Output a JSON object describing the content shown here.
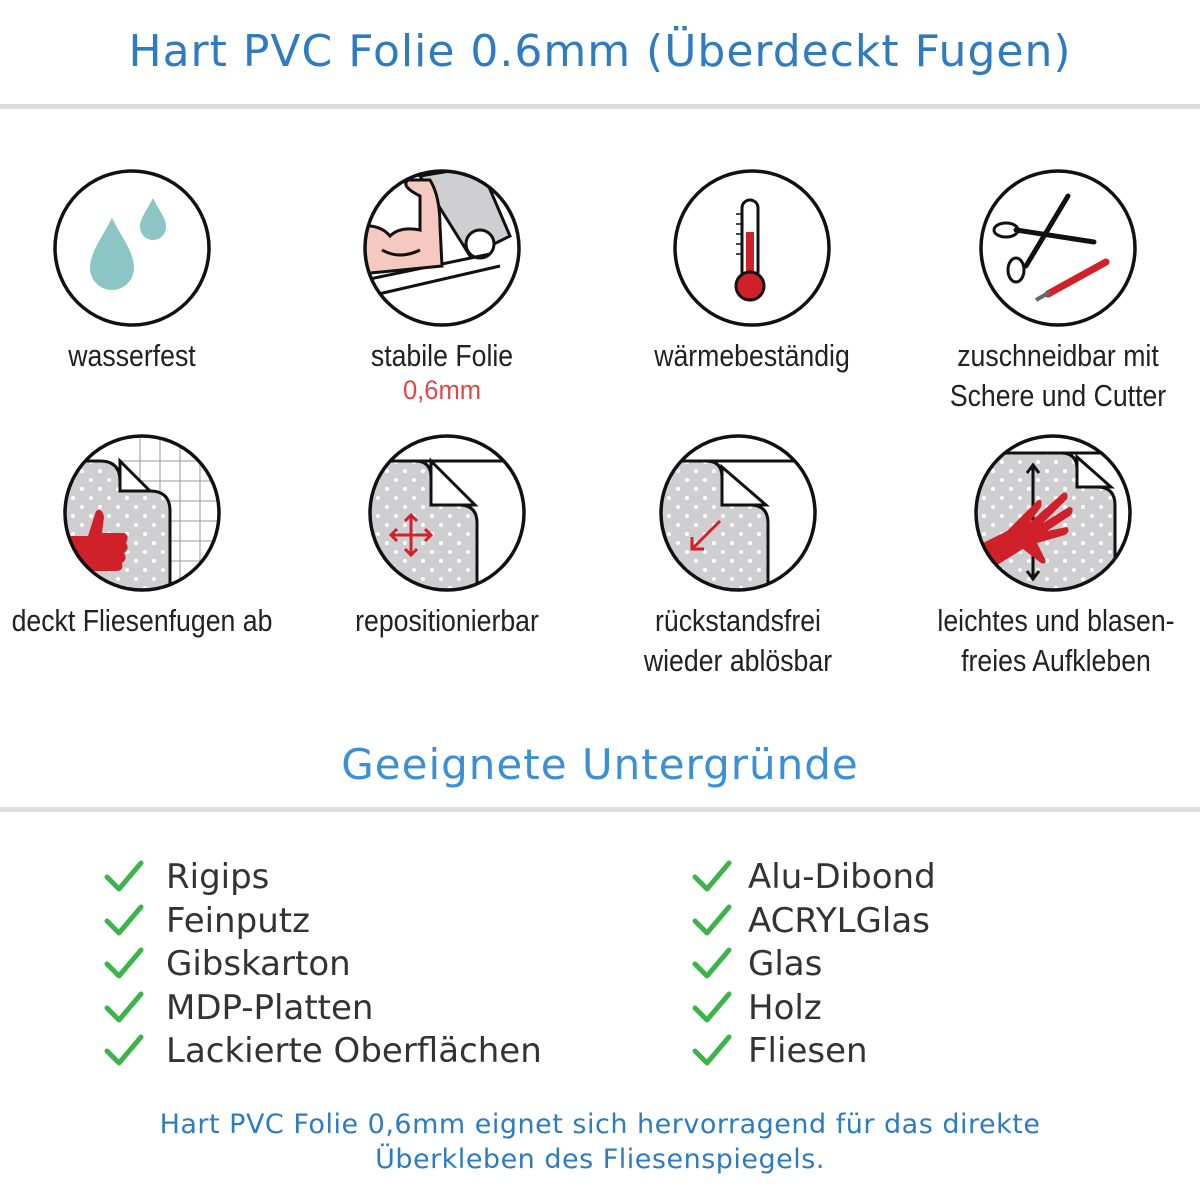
{
  "title": "Hart PVC Folie 0.6mm (Überdeckt Fugen)",
  "features": [
    {
      "icon": "water-drops-icon",
      "lines": [
        "wasserfest"
      ]
    },
    {
      "icon": "strong-arm-icon",
      "lines": [
        "stabile Folie"
      ],
      "sub": "0,6mm"
    },
    {
      "icon": "thermometer-icon",
      "lines": [
        "wärmebeständig"
      ]
    },
    {
      "icon": "scissors-cutter-icon",
      "lines": [
        "zuschneidbar mit",
        "Schere und Cutter"
      ]
    },
    {
      "icon": "thumbs-up-tiles-icon",
      "lines": [
        "deckt Fliesenfugen ab"
      ]
    },
    {
      "icon": "move-arrows-icon",
      "lines": [
        "repositionierbar"
      ]
    },
    {
      "icon": "peel-arrow-icon",
      "lines": [
        "rückstandsfrei",
        "wieder ablösbar"
      ]
    },
    {
      "icon": "hand-smooth-icon",
      "lines": [
        "leichtes und blasen-",
        "freies Aufkleben"
      ]
    }
  ],
  "surfaces_title": "Geeignete Untergründe",
  "surfaces_left": [
    "Rigips",
    "Feinputz",
    "Gibskarton",
    "MDP-Platten",
    "Lackierte Oberflächen"
  ],
  "surfaces_right": [
    "Alu-Dibond",
    "ACRYLGlas",
    "Glas",
    "Holz",
    "Fliesen"
  ],
  "footer": [
    "Hart PVC Folie 0,6mm eignet sich hervorragend für das direkte",
    "Überkleben des Fliesenspiegels."
  ],
  "colors": {
    "title": "#2e7bc2",
    "accent_red": "#d0202a",
    "check": "#3cb44b",
    "drop": "#8cc5c6"
  }
}
